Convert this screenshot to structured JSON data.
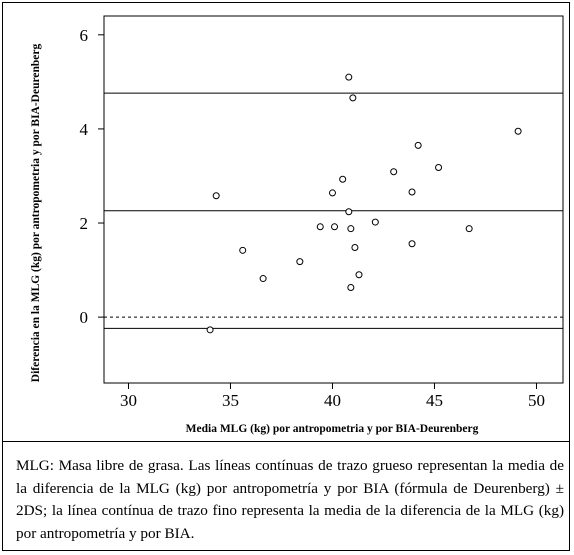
{
  "chart_data": {
    "type": "scatter",
    "title": "",
    "xlabel": "Media MLG (kg) por antropometria y por BIA-Deurenberg",
    "ylabel": "Diferencia en la MLG (kg) por antropometria y por BIA-Deurenberg",
    "xlim": [
      28.8,
      51.3
    ],
    "ylim": [
      -1.4,
      6.4
    ],
    "xticks": [
      30,
      35,
      40,
      45,
      50
    ],
    "yticks": [
      0,
      2,
      4,
      6
    ],
    "grid": false,
    "points": [
      {
        "x": 34.0,
        "y": -0.27
      },
      {
        "x": 34.3,
        "y": 2.58
      },
      {
        "x": 35.6,
        "y": 1.42
      },
      {
        "x": 36.6,
        "y": 0.82
      },
      {
        "x": 38.4,
        "y": 1.18
      },
      {
        "x": 39.4,
        "y": 1.92
      },
      {
        "x": 40.0,
        "y": 2.64
      },
      {
        "x": 40.1,
        "y": 1.92
      },
      {
        "x": 40.5,
        "y": 2.93
      },
      {
        "x": 40.8,
        "y": 2.24
      },
      {
        "x": 40.8,
        "y": 5.1
      },
      {
        "x": 40.9,
        "y": 1.88
      },
      {
        "x": 40.9,
        "y": 0.63
      },
      {
        "x": 41.0,
        "y": 4.66
      },
      {
        "x": 41.1,
        "y": 1.48
      },
      {
        "x": 41.3,
        "y": 0.9
      },
      {
        "x": 42.1,
        "y": 2.02
      },
      {
        "x": 43.0,
        "y": 3.09
      },
      {
        "x": 43.9,
        "y": 1.56
      },
      {
        "x": 43.9,
        "y": 2.66
      },
      {
        "x": 44.2,
        "y": 3.65
      },
      {
        "x": 45.2,
        "y": 3.18
      },
      {
        "x": 46.7,
        "y": 1.88
      },
      {
        "x": 49.1,
        "y": 3.95
      }
    ],
    "reference_lines": [
      {
        "y": 4.76,
        "style": "solid"
      },
      {
        "y": 2.26,
        "style": "solid"
      },
      {
        "y": -0.24,
        "style": "solid"
      },
      {
        "y": 0.0,
        "style": "dashed"
      }
    ]
  },
  "caption": "MLG: Masa libre de grasa. Las líneas contínuas de trazo grueso representan la media de la diferencia de la MLG (kg) por antropometría y por BIA (fórmula de Deurenberg) ± 2DS; la línea contínua de trazo fino representa la media de la diferencia de la MLG (kg) por antropometría y por BIA."
}
